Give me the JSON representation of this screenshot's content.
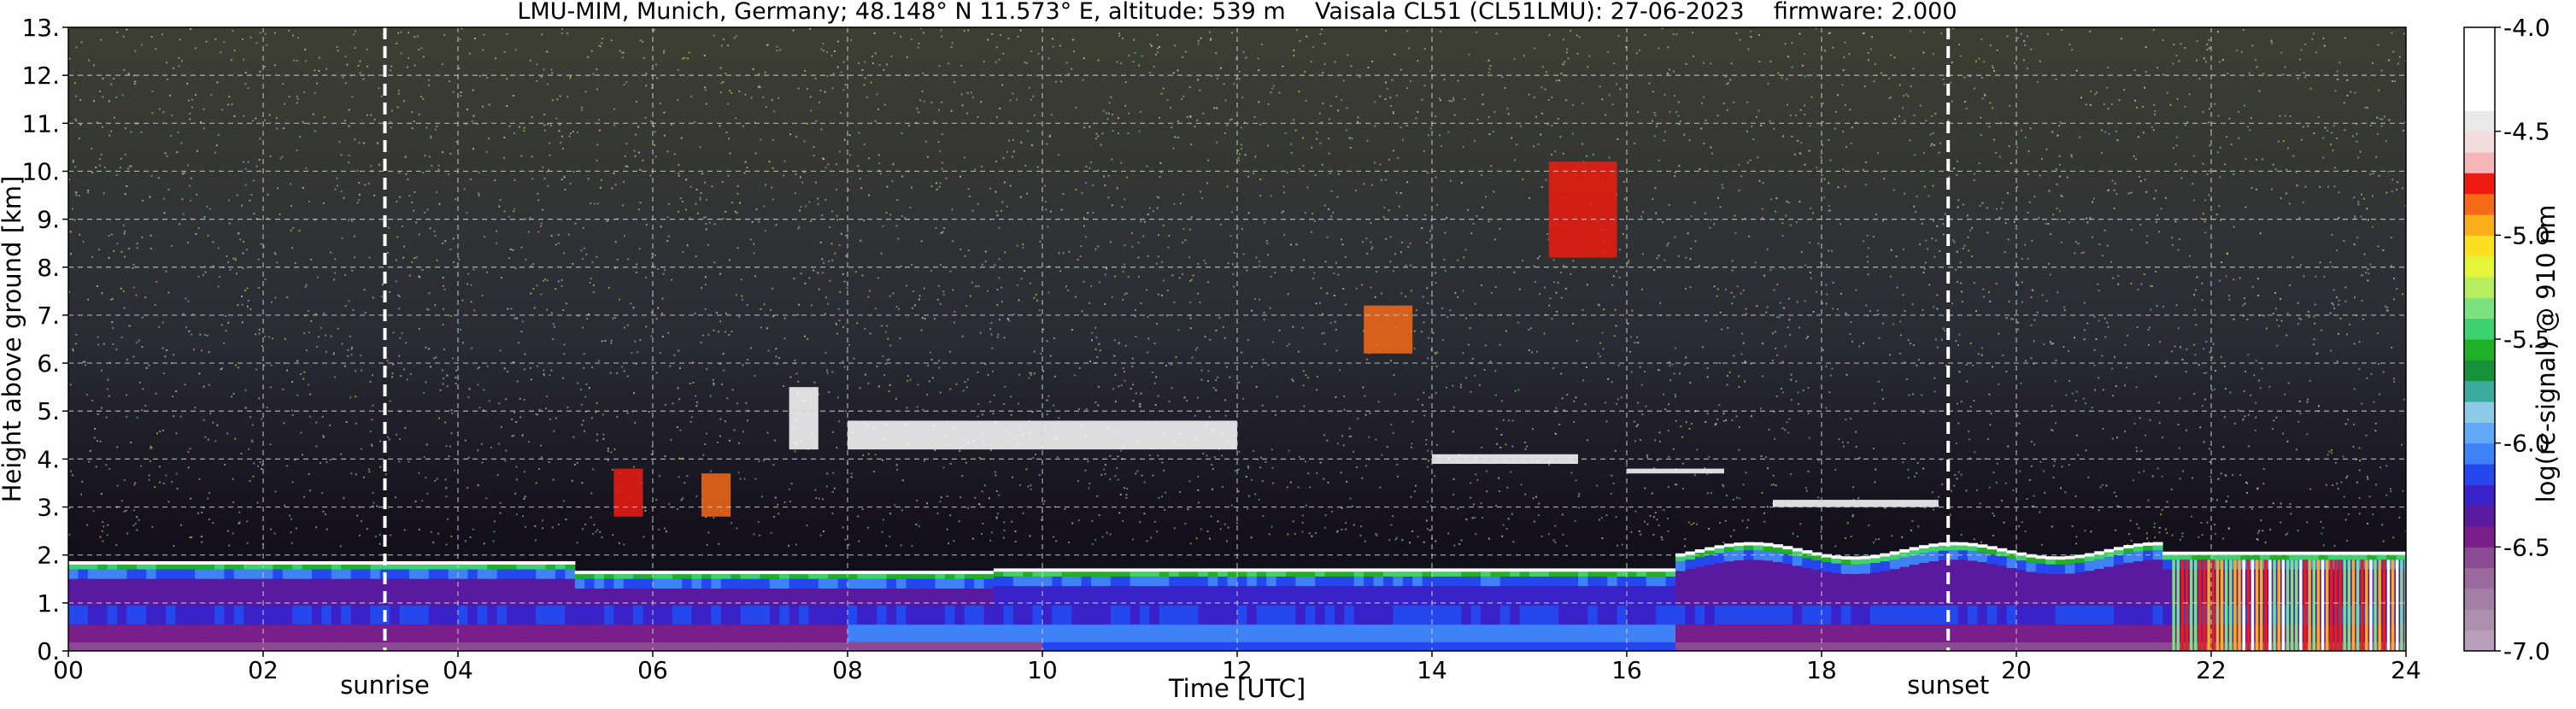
{
  "chart_data": {
    "type": "heatmap",
    "title": "LMU-MIM, Munich, Germany; 48.148° N 11.573° E, altitude: 539 m    Vaisala CL51 (CL51LMU): 27-06-2023    firmware: 2.000",
    "xlabel": "Time [UTC]",
    "ylabel": "Height above ground [km]",
    "xlim": [
      0,
      24
    ],
    "ylim": [
      0,
      13
    ],
    "x_ticks": [
      0,
      2,
      4,
      6,
      8,
      10,
      12,
      14,
      16,
      18,
      20,
      22,
      24
    ],
    "x_tick_labels": [
      "00",
      "02",
      "04",
      "06",
      "08",
      "10",
      "12",
      "14",
      "16",
      "18",
      "20",
      "22",
      "24"
    ],
    "y_ticks": [
      0,
      1,
      2,
      3,
      4,
      5,
      6,
      7,
      8,
      9,
      10,
      11,
      12,
      13
    ],
    "y_tick_labels": [
      "0.",
      "1.",
      "2.",
      "3.",
      "4.",
      "5.",
      "6.",
      "7.",
      "8.",
      "9.",
      "10.",
      "11.",
      "12.",
      "13."
    ],
    "grid": true,
    "markers": [
      {
        "label": "sunrise",
        "x": 3.25
      },
      {
        "label": "sunset",
        "x": 19.3
      }
    ],
    "colorbar": {
      "label": "log(rc-signal) @ 910 nm",
      "range": [
        -7.0,
        -4.0
      ],
      "ticks": [
        -7.0,
        -6.5,
        -6.0,
        -5.5,
        -5.0,
        -4.5,
        -4.0
      ],
      "tick_labels": [
        "-7.0",
        "-6.5",
        "-6.0",
        "-5.5",
        "-5.0",
        "-4.5",
        "-4.0"
      ],
      "colors": [
        {
          "from": -7.0,
          "to": -6.9,
          "color": "#b7a0b8"
        },
        {
          "from": -6.9,
          "to": -6.8,
          "color": "#ad8fae"
        },
        {
          "from": -6.8,
          "to": -6.7,
          "color": "#a37fa5"
        },
        {
          "from": -6.7,
          "to": -6.6,
          "color": "#9b6a9c"
        },
        {
          "from": -6.6,
          "to": -6.5,
          "color": "#8c4a94"
        },
        {
          "from": -6.5,
          "to": -6.4,
          "color": "#7a1f8a"
        },
        {
          "from": -6.4,
          "to": -6.3,
          "color": "#5a1aa0"
        },
        {
          "from": -6.3,
          "to": -6.2,
          "color": "#3a22c8"
        },
        {
          "from": -6.2,
          "to": -6.1,
          "color": "#2448ee"
        },
        {
          "from": -6.1,
          "to": -6.0,
          "color": "#3f82f7"
        },
        {
          "from": -6.0,
          "to": -5.9,
          "color": "#62a8f4"
        },
        {
          "from": -5.9,
          "to": -5.8,
          "color": "#8ccbe6"
        },
        {
          "from": -5.8,
          "to": -5.7,
          "color": "#3caa9c"
        },
        {
          "from": -5.7,
          "to": -5.6,
          "color": "#16903a"
        },
        {
          "from": -5.6,
          "to": -5.5,
          "color": "#1fb12a"
        },
        {
          "from": -5.5,
          "to": -5.4,
          "color": "#3cd36e"
        },
        {
          "from": -5.4,
          "to": -5.3,
          "color": "#7be27f"
        },
        {
          "from": -5.3,
          "to": -5.2,
          "color": "#b8ee60"
        },
        {
          "from": -5.2,
          "to": -5.1,
          "color": "#e5f53a"
        },
        {
          "from": -5.1,
          "to": -5.0,
          "color": "#fbe022"
        },
        {
          "from": -5.0,
          "to": -4.9,
          "color": "#fbad1c"
        },
        {
          "from": -4.9,
          "to": -4.8,
          "color": "#f66a17"
        },
        {
          "from": -4.8,
          "to": -4.7,
          "color": "#ee1c10"
        },
        {
          "from": -4.7,
          "to": -4.6,
          "color": "#f4b6b6"
        },
        {
          "from": -4.6,
          "to": -4.5,
          "color": "#f2dcdc"
        },
        {
          "from": -4.5,
          "to": -4.4,
          "color": "#e9e9e9"
        },
        {
          "from": -4.4,
          "to": -4.0,
          "color": "#ffffff"
        }
      ]
    }
  }
}
